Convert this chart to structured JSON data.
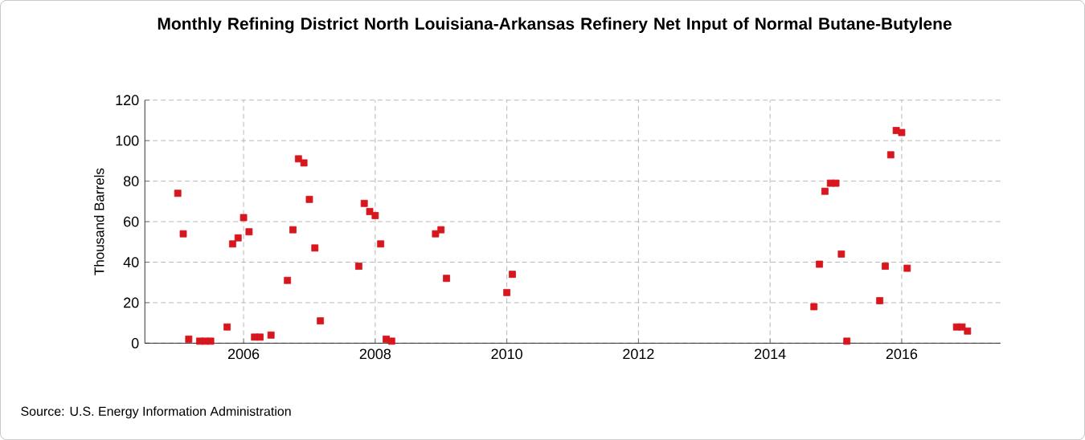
{
  "chart_data": {
    "type": "scatter",
    "title": "Monthly Refining District North Louisiana-Arkansas Refinery Net Input of Normal Butane-Butylene",
    "ylabel": "Thousand Barrels",
    "annotations": [
      "Source: U.S. Energy Information Administration"
    ],
    "x": [
      "2005-01",
      "2005-02",
      "2005-03",
      "2005-05",
      "2005-06",
      "2005-07",
      "2005-10",
      "2005-11",
      "2005-12",
      "2006-01",
      "2006-02",
      "2006-03",
      "2006-04",
      "2006-06",
      "2006-09",
      "2006-10",
      "2006-11",
      "2006-12",
      "2007-01",
      "2007-02",
      "2007-03",
      "2007-10",
      "2007-11",
      "2007-12",
      "2008-01",
      "2008-02",
      "2008-03",
      "2008-04",
      "2008-12",
      "2009-01",
      "2009-02",
      "2010-01",
      "2010-02",
      "2014-09",
      "2014-10",
      "2014-11",
      "2014-12",
      "2015-01",
      "2015-02",
      "2015-03",
      "2015-09",
      "2015-10",
      "2015-11",
      "2015-12",
      "2016-01",
      "2016-02",
      "2016-11",
      "2016-12",
      "2017-01"
    ],
    "values": [
      74,
      54,
      2,
      1,
      1,
      1,
      8,
      49,
      52,
      62,
      55,
      3,
      3,
      4,
      31,
      56,
      91,
      89,
      71,
      47,
      11,
      38,
      69,
      65,
      63,
      49,
      2,
      1,
      54,
      56,
      32,
      25,
      34,
      18,
      39,
      75,
      79,
      79,
      44,
      1,
      21,
      38,
      93,
      105,
      104,
      37,
      8,
      8,
      6
    ],
    "color": "#d7161e",
    "marker": "square",
    "grid": true,
    "xlim": [
      "2004-07",
      "2017-07"
    ],
    "xticks": [
      "2006",
      "2008",
      "2010",
      "2012",
      "2014",
      "2016"
    ],
    "ylim": [
      0,
      120
    ],
    "yticks": [
      0,
      20,
      40,
      60,
      80,
      100,
      120
    ]
  }
}
